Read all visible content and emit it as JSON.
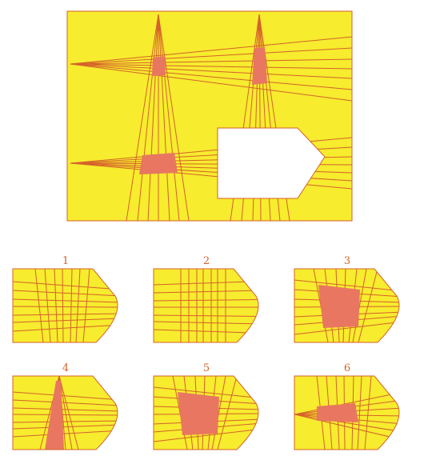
{
  "colors": {
    "background": "#ffffff",
    "panel_fill": "#f7ec2e",
    "line": "#d4622a",
    "overlap_fill": "#e87660",
    "hole_fill": "#ffffff"
  },
  "puzzle": {
    "question": {
      "missing_piece": "white-hole"
    },
    "options": [
      {
        "label": "1",
        "variant": "lines-no-fill"
      },
      {
        "label": "2",
        "variant": "grid-lines-no-fill"
      },
      {
        "label": "3",
        "variant": "square-fill"
      },
      {
        "label": "4",
        "variant": "vertical-wedge-fill"
      },
      {
        "label": "5",
        "variant": "square-fill"
      },
      {
        "label": "6",
        "variant": "horizontal-wedge-fill"
      }
    ]
  }
}
